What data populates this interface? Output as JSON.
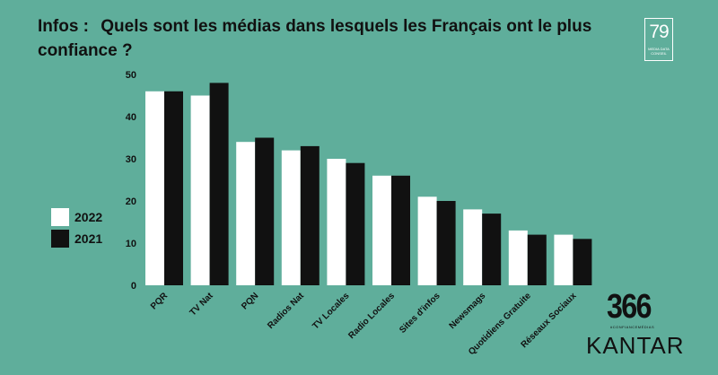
{
  "title": {
    "prefix": "Infos :",
    "text": "Quels sont les médias dans lesquels les Français ont le plus confiance ?"
  },
  "logos": {
    "top_right_number": "79",
    "top_right_caption": "MEDIA DATA CONSEIL",
    "bottom_main": "366",
    "bottom_sub": "#CONFIANCEMÉDIAS",
    "bottom_brand": "KANTAR"
  },
  "colors": {
    "background": "#5fae9b",
    "series_2022": "#ffffff",
    "series_2021": "#111111"
  },
  "chart_data": {
    "type": "bar",
    "title": "Quels sont les médias dans lesquels les Français ont le plus confiance ?",
    "categories": [
      "PQR",
      "TV Nat",
      "PQN",
      "Radios Nat",
      "TV Locales",
      "Radio Locales",
      "Sites d'infos",
      "Newsmags",
      "Quotidiens Gratuite",
      "Réseaux Sociaux"
    ],
    "series": [
      {
        "name": "2022",
        "values": [
          46,
          45,
          34,
          32,
          30,
          26,
          21,
          18,
          13,
          12
        ]
      },
      {
        "name": "2021",
        "values": [
          46,
          48,
          35,
          33,
          29,
          26,
          20,
          17,
          12,
          11
        ]
      }
    ],
    "ylim": [
      0,
      50
    ],
    "yticks": [
      0,
      10,
      20,
      30,
      40,
      50
    ],
    "grid": false,
    "legend_position": "left"
  }
}
